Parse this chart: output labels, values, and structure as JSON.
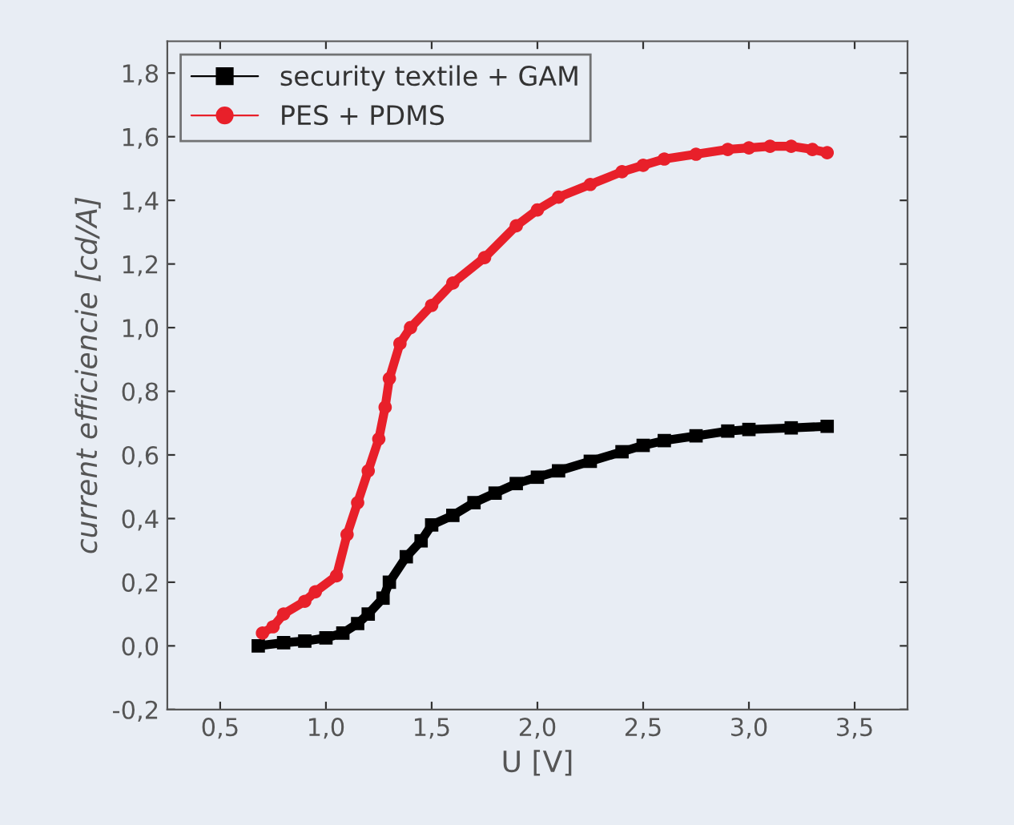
{
  "chart_data": {
    "type": "line",
    "xlabel": "U [V]",
    "ylabel": "current efficiencie [cd/A]",
    "xlim": [
      0.25,
      3.75
    ],
    "ylim": [
      -0.2,
      1.9
    ],
    "xticks": [
      {
        "value": 0.5,
        "label": "0,5"
      },
      {
        "value": 1.0,
        "label": "1,0"
      },
      {
        "value": 1.5,
        "label": "1,5"
      },
      {
        "value": 2.0,
        "label": "2,0"
      },
      {
        "value": 2.5,
        "label": "2,5"
      },
      {
        "value": 3.0,
        "label": "3,0"
      },
      {
        "value": 3.5,
        "label": "3,5"
      }
    ],
    "yticks": [
      {
        "value": -0.2,
        "label": "-0,2"
      },
      {
        "value": 0.0,
        "label": "0,0"
      },
      {
        "value": 0.2,
        "label": "0,2"
      },
      {
        "value": 0.4,
        "label": "0,4"
      },
      {
        "value": 0.6,
        "label": "0,6"
      },
      {
        "value": 0.8,
        "label": "0,8"
      },
      {
        "value": 1.0,
        "label": "1,0"
      },
      {
        "value": 1.2,
        "label": "1,2"
      },
      {
        "value": 1.4,
        "label": "1,4"
      },
      {
        "value": 1.6,
        "label": "1,6"
      },
      {
        "value": 1.8,
        "label": "1,8"
      }
    ],
    "legend": "top left",
    "grid": false,
    "line_style": "solid",
    "series": [
      {
        "name": "security textile + GAM",
        "color": "#000000",
        "marker": "square",
        "x": [
          0.68,
          0.8,
          0.9,
          1.0,
          1.08,
          1.15,
          1.2,
          1.27,
          1.3,
          1.38,
          1.45,
          1.5,
          1.6,
          1.7,
          1.8,
          1.9,
          2.0,
          2.1,
          2.25,
          2.4,
          2.5,
          2.6,
          2.75,
          2.9,
          3.0,
          3.2,
          3.37
        ],
        "values": [
          0.0,
          0.01,
          0.015,
          0.025,
          0.04,
          0.07,
          0.1,
          0.15,
          0.2,
          0.28,
          0.33,
          0.38,
          0.41,
          0.45,
          0.48,
          0.51,
          0.53,
          0.55,
          0.58,
          0.61,
          0.63,
          0.645,
          0.66,
          0.675,
          0.68,
          0.685,
          0.69
        ]
      },
      {
        "name": "PES + PDMS",
        "color": "#e8202a",
        "marker": "circle",
        "x": [
          0.7,
          0.75,
          0.8,
          0.9,
          0.95,
          1.05,
          1.1,
          1.15,
          1.2,
          1.25,
          1.28,
          1.3,
          1.35,
          1.4,
          1.5,
          1.6,
          1.75,
          1.9,
          2.0,
          2.1,
          2.25,
          2.4,
          2.5,
          2.6,
          2.75,
          2.9,
          3.0,
          3.1,
          3.2,
          3.3,
          3.37
        ],
        "values": [
          0.04,
          0.06,
          0.1,
          0.14,
          0.17,
          0.22,
          0.35,
          0.45,
          0.55,
          0.65,
          0.75,
          0.84,
          0.95,
          1.0,
          1.07,
          1.14,
          1.22,
          1.32,
          1.37,
          1.41,
          1.45,
          1.49,
          1.51,
          1.53,
          1.545,
          1.56,
          1.565,
          1.57,
          1.57,
          1.56,
          1.55
        ]
      }
    ]
  }
}
